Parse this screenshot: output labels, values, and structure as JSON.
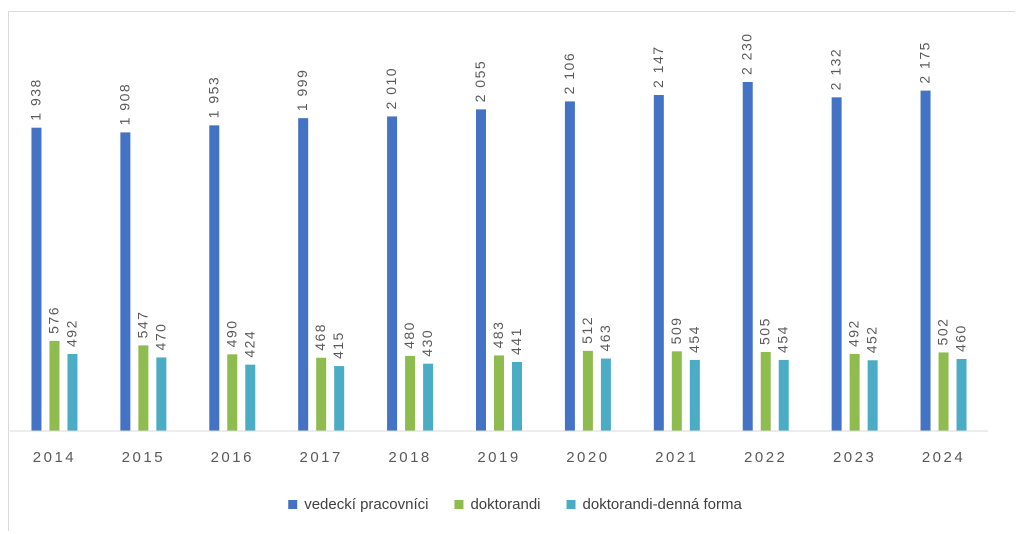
{
  "chart_data": {
    "type": "bar",
    "categories": [
      "2014",
      "2015",
      "2016",
      "2017",
      "2018",
      "2019",
      "2020",
      "2021",
      "2022",
      "2023",
      "2024"
    ],
    "series": [
      {
        "name": "vedeckí pracovníci",
        "color": "#4472c4",
        "values": [
          1938,
          1908,
          1953,
          1999,
          2010,
          2055,
          2106,
          2147,
          2230,
          2132,
          2175
        ],
        "labels": [
          "1 938",
          "1 908",
          "1 953",
          "1 999",
          "2 010",
          "2 055",
          "2 106",
          "2 147",
          "2 230",
          "2 132",
          "2 175"
        ]
      },
      {
        "name": "doktorandi",
        "color": "#8fbc4f",
        "values": [
          576,
          547,
          490,
          468,
          480,
          483,
          512,
          509,
          505,
          492,
          502
        ],
        "labels": [
          "576",
          "547",
          "490",
          "468",
          "480",
          "483",
          "512",
          "509",
          "505",
          "492",
          "502"
        ]
      },
      {
        "name": "doktorandi-denná forma",
        "color": "#4bacc6",
        "values": [
          492,
          470,
          424,
          415,
          430,
          441,
          463,
          454,
          454,
          452,
          460
        ],
        "labels": [
          "492",
          "470",
          "424",
          "415",
          "430",
          "441",
          "463",
          "454",
          "454",
          "452",
          "460"
        ]
      }
    ],
    "title": "",
    "xlabel": "",
    "ylabel": "",
    "ylim": [
      0,
      2500
    ],
    "grid": false,
    "legend": "bottom"
  }
}
